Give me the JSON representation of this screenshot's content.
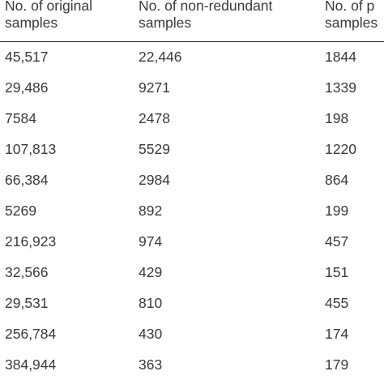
{
  "table": {
    "headers": [
      [
        "No. of original",
        "samples"
      ],
      [
        "No. of non-redundant",
        "samples"
      ],
      [
        "No. of p",
        "samples"
      ]
    ],
    "rows": [
      [
        "45,517",
        "22,446",
        "1844"
      ],
      [
        "29,486",
        "9271",
        "1339"
      ],
      [
        "7584",
        "2478",
        "198"
      ],
      [
        "107,813",
        "5529",
        "1220"
      ],
      [
        "66,384",
        "2984",
        "864"
      ],
      [
        "5269",
        "892",
        "199"
      ],
      [
        "216,923",
        "974",
        "457"
      ],
      [
        "32,566",
        "429",
        "151"
      ],
      [
        "29,531",
        "810",
        "455"
      ],
      [
        "256,784",
        "430",
        "174"
      ],
      [
        "384,944",
        "363",
        "179"
      ]
    ]
  }
}
